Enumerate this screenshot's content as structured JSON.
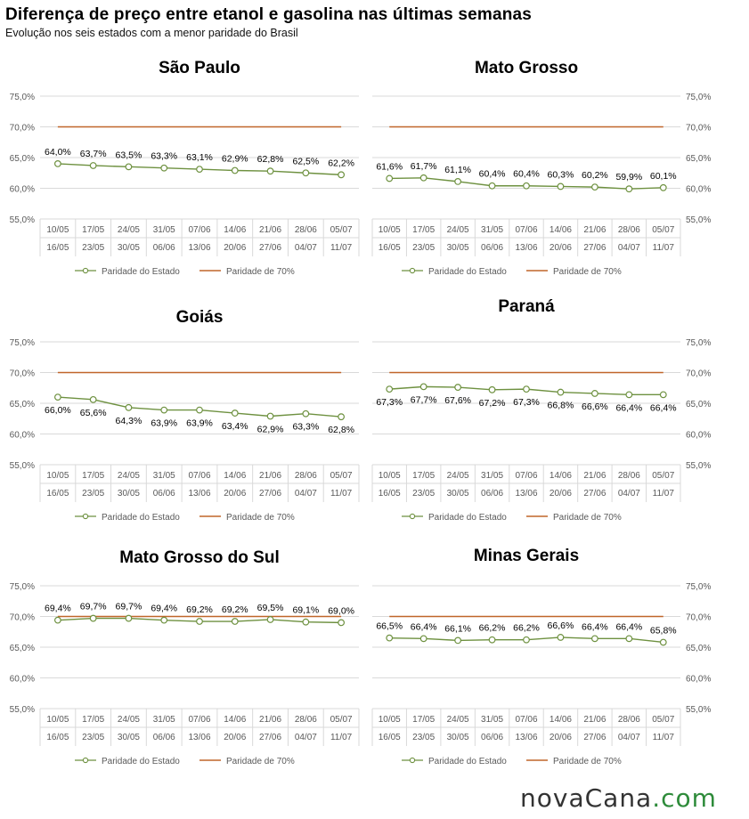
{
  "title": "Diferença de preço entre etanol e gasolina nas últimas semanas",
  "subtitle": "Evolução nos seis estados com a menor paridade do Brasil",
  "logo": {
    "part1": "novaCana",
    "part2": ".com"
  },
  "colors": {
    "state_line": "#6e9140",
    "threshold_line": "#c0662a",
    "grid": "#d9d9d9",
    "text": "#595959"
  },
  "chart_data": [
    {
      "type": "line",
      "title": "São Paulo",
      "axis_side": "left",
      "categories_top": [
        "10/05",
        "17/05",
        "24/05",
        "31/05",
        "07/06",
        "14/06",
        "21/06",
        "28/06",
        "05/07"
      ],
      "categories_bottom": [
        "16/05",
        "23/05",
        "30/05",
        "06/06",
        "13/06",
        "20/06",
        "27/06",
        "04/07",
        "11/07"
      ],
      "yticks": [
        "55,0%",
        "60,0%",
        "65,0%",
        "70,0%",
        "75,0%"
      ],
      "ylim": [
        55,
        75
      ],
      "series": [
        {
          "name": "Paridade do Estado",
          "values": [
            64.0,
            63.7,
            63.5,
            63.3,
            63.1,
            62.9,
            62.8,
            62.5,
            62.2
          ],
          "labels": [
            "64,0%",
            "63,7%",
            "63,5%",
            "63,3%",
            "63,1%",
            "62,9%",
            "62,8%",
            "62,5%",
            "62,2%"
          ],
          "label_pos": "above"
        },
        {
          "name": "Paridade de 70%",
          "values": [
            70,
            70,
            70,
            70,
            70,
            70,
            70,
            70,
            70
          ]
        }
      ]
    },
    {
      "type": "line",
      "title": "Mato Grosso",
      "axis_side": "right",
      "categories_top": [
        "10/05",
        "17/05",
        "24/05",
        "31/05",
        "07/06",
        "14/06",
        "21/06",
        "28/06",
        "05/07"
      ],
      "categories_bottom": [
        "16/05",
        "23/05",
        "30/05",
        "06/06",
        "13/06",
        "20/06",
        "27/06",
        "04/07",
        "11/07"
      ],
      "yticks": [
        "55,0%",
        "60,0%",
        "65,0%",
        "70,0%",
        "75,0%"
      ],
      "ylim": [
        55,
        75
      ],
      "series": [
        {
          "name": "Paridade do Estado",
          "values": [
            61.6,
            61.7,
            61.1,
            60.4,
            60.4,
            60.3,
            60.2,
            59.9,
            60.1
          ],
          "labels": [
            "61,6%",
            "61,7%",
            "61,1%",
            "60,4%",
            "60,4%",
            "60,3%",
            "60,2%",
            "59,9%",
            "60,1%"
          ],
          "label_pos": "above"
        },
        {
          "name": "Paridade de 70%",
          "values": [
            70,
            70,
            70,
            70,
            70,
            70,
            70,
            70,
            70
          ]
        }
      ]
    },
    {
      "type": "line",
      "title": "Goiás",
      "axis_side": "left",
      "categories_top": [
        "10/05",
        "17/05",
        "24/05",
        "31/05",
        "07/06",
        "14/06",
        "21/06",
        "28/06",
        "05/07"
      ],
      "categories_bottom": [
        "16/05",
        "23/05",
        "30/05",
        "06/06",
        "13/06",
        "20/06",
        "27/06",
        "04/07",
        "11/07"
      ],
      "yticks": [
        "55,0%",
        "60,0%",
        "65,0%",
        "70,0%",
        "75,0%"
      ],
      "ylim": [
        55,
        75
      ],
      "series": [
        {
          "name": "Paridade do Estado",
          "values": [
            66.0,
            65.6,
            64.3,
            63.9,
            63.9,
            63.4,
            62.9,
            63.3,
            62.8
          ],
          "labels": [
            "66,0%",
            "65,6%",
            "64,3%",
            "63,9%",
            "63,9%",
            "63,4%",
            "62,9%",
            "63,3%",
            "62,8%"
          ],
          "label_pos": "below"
        },
        {
          "name": "Paridade de 70%",
          "values": [
            70,
            70,
            70,
            70,
            70,
            70,
            70,
            70,
            70
          ]
        }
      ]
    },
    {
      "type": "line",
      "title": "Paraná",
      "axis_side": "right",
      "categories_top": [
        "10/05",
        "17/05",
        "24/05",
        "31/05",
        "07/06",
        "14/06",
        "21/06",
        "28/06",
        "05/07"
      ],
      "categories_bottom": [
        "16/05",
        "23/05",
        "30/05",
        "06/06",
        "13/06",
        "20/06",
        "27/06",
        "04/07",
        "11/07"
      ],
      "yticks": [
        "55,0%",
        "60,0%",
        "65,0%",
        "70,0%",
        "75,0%"
      ],
      "ylim": [
        55,
        75
      ],
      "series": [
        {
          "name": "Paridade do Estado",
          "values": [
            67.3,
            67.7,
            67.6,
            67.2,
            67.3,
            66.8,
            66.6,
            66.4,
            66.4
          ],
          "labels": [
            "67,3%",
            "67,7%",
            "67,6%",
            "67,2%",
            "67,3%",
            "66,8%",
            "66,6%",
            "66,4%",
            "66,4%"
          ],
          "label_pos": "below"
        },
        {
          "name": "Paridade de 70%",
          "values": [
            70,
            70,
            70,
            70,
            70,
            70,
            70,
            70,
            70
          ]
        }
      ]
    },
    {
      "type": "line",
      "title": "Mato Grosso do Sul",
      "axis_side": "left",
      "categories_top": [
        "10/05",
        "17/05",
        "24/05",
        "31/05",
        "07/06",
        "14/06",
        "21/06",
        "28/06",
        "05/07"
      ],
      "categories_bottom": [
        "16/05",
        "23/05",
        "30/05",
        "06/06",
        "13/06",
        "20/06",
        "27/06",
        "04/07",
        "11/07"
      ],
      "yticks": [
        "55,0%",
        "60,0%",
        "65,0%",
        "70,0%",
        "75,0%"
      ],
      "ylim": [
        55,
        75
      ],
      "series": [
        {
          "name": "Paridade do Estado",
          "values": [
            69.4,
            69.7,
            69.7,
            69.4,
            69.2,
            69.2,
            69.5,
            69.1,
            69.0
          ],
          "labels": [
            "69,4%",
            "69,7%",
            "69,7%",
            "69,4%",
            "69,2%",
            "69,2%",
            "69,5%",
            "69,1%",
            "69,0%"
          ],
          "label_pos": "above"
        },
        {
          "name": "Paridade de 70%",
          "values": [
            70,
            70,
            70,
            70,
            70,
            70,
            70,
            70,
            70
          ]
        }
      ]
    },
    {
      "type": "line",
      "title": "Minas Gerais",
      "axis_side": "right",
      "categories_top": [
        "10/05",
        "17/05",
        "24/05",
        "31/05",
        "07/06",
        "14/06",
        "21/06",
        "28/06",
        "05/07"
      ],
      "categories_bottom": [
        "16/05",
        "23/05",
        "30/05",
        "06/06",
        "13/06",
        "20/06",
        "27/06",
        "04/07",
        "11/07"
      ],
      "yticks": [
        "55,0%",
        "60,0%",
        "65,0%",
        "70,0%",
        "75,0%"
      ],
      "ylim": [
        55,
        75
      ],
      "series": [
        {
          "name": "Paridade do Estado",
          "values": [
            66.5,
            66.4,
            66.1,
            66.2,
            66.2,
            66.6,
            66.4,
            66.4,
            65.8
          ],
          "labels": [
            "66,5%",
            "66,4%",
            "66,1%",
            "66,2%",
            "66,2%",
            "66,6%",
            "66,4%",
            "66,4%",
            "65,8%"
          ],
          "label_pos": "above"
        },
        {
          "name": "Paridade de 70%",
          "values": [
            70,
            70,
            70,
            70,
            70,
            70,
            70,
            70,
            70
          ]
        }
      ]
    }
  ]
}
